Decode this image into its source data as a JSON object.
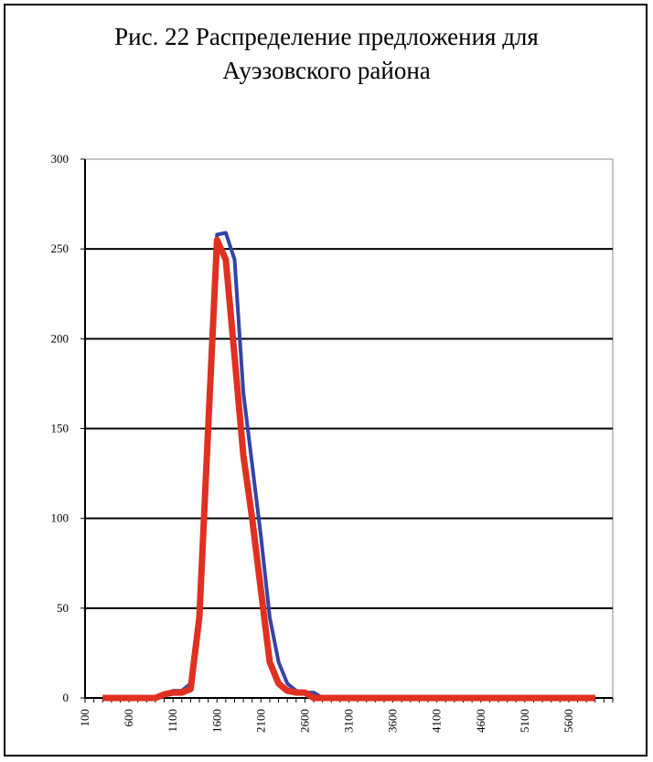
{
  "title_line1": "Рис. 22 Распределение предложения для",
  "title_line2": "Ауэзовского района",
  "chart_data": {
    "type": "line",
    "title": "Рис. 22 Распределение предложения для Ауэзовского района",
    "xlabel": "",
    "ylabel": "",
    "ylim": [
      0,
      300
    ],
    "y_ticks": [
      "0",
      "50",
      "100",
      "150",
      "200",
      "250",
      "300"
    ],
    "x_tick_labels": [
      "100",
      "600",
      "1100",
      "1600",
      "2100",
      "2600",
      "3100",
      "3600",
      "4100",
      "4600",
      "5100",
      "5600"
    ],
    "grid": true,
    "legend": "none",
    "x": [
      300,
      400,
      500,
      600,
      700,
      800,
      900,
      1000,
      1100,
      1200,
      1300,
      1400,
      1500,
      1600,
      1700,
      1800,
      1900,
      2000,
      2100,
      2200,
      2300,
      2400,
      2500,
      2600,
      2700,
      2800,
      2900,
      3000,
      3100,
      3200,
      3300,
      3400,
      3500,
      3600,
      3700,
      3800,
      3900,
      4000,
      4100,
      4200,
      4300,
      4400,
      4500,
      4600,
      4700,
      4800,
      4900,
      5000,
      5100,
      5200,
      5300,
      5400,
      5500,
      5600,
      5700,
      5800,
      5900
    ],
    "series": [
      {
        "color": "#3344aa",
        "values": [
          0,
          0,
          0,
          0,
          0,
          0,
          0,
          2,
          4,
          4,
          8,
          50,
          150,
          258,
          259,
          244,
          170,
          130,
          90,
          45,
          20,
          8,
          4,
          3,
          3,
          0,
          0,
          0,
          0,
          0,
          0,
          0,
          0,
          0,
          0,
          0,
          0,
          0,
          0,
          0,
          0,
          0,
          0,
          0,
          0,
          0,
          0,
          0,
          0,
          0,
          0,
          0,
          0,
          0,
          0,
          0,
          0
        ]
      },
      {
        "color": "#e03020",
        "values": [
          0,
          0,
          0,
          0,
          0,
          0,
          0,
          2,
          3,
          3,
          5,
          45,
          150,
          255,
          244,
          190,
          135,
          100,
          60,
          20,
          8,
          4,
          3,
          3,
          0,
          0,
          0,
          0,
          0,
          0,
          0,
          0,
          0,
          0,
          0,
          0,
          0,
          0,
          0,
          0,
          0,
          0,
          0,
          0,
          0,
          0,
          0,
          0,
          0,
          0,
          0,
          0,
          0,
          0,
          0,
          0,
          0
        ]
      }
    ]
  }
}
